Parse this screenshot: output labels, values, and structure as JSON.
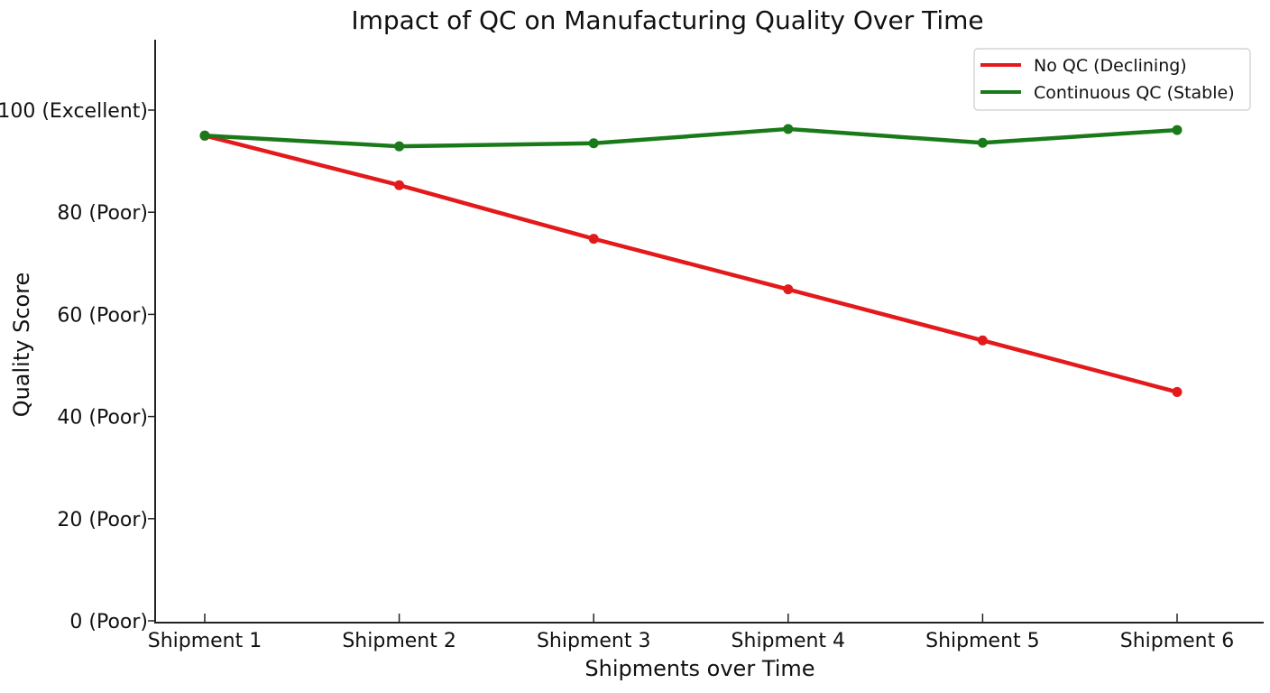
{
  "chart_data": {
    "type": "line",
    "title": "Impact of QC on Manufacturing Quality Over Time",
    "xlabel": "Shipments over Time",
    "ylabel": "Quality Score",
    "categories": [
      "Shipment 1",
      "Shipment 2",
      "Shipment 3",
      "Shipment 4",
      "Shipment 5",
      "Shipment 6"
    ],
    "yticks": [
      0,
      20,
      40,
      60,
      80,
      100
    ],
    "ytick_labels": [
      "0 (Poor)",
      "20 (Poor)",
      "40 (Poor)",
      "60 (Poor)",
      "80 (Poor)",
      "100 (Excellent)"
    ],
    "ylim": [
      0,
      114
    ],
    "grid": false,
    "legend_position": "top-right",
    "series": [
      {
        "name": "No QC (Declining)",
        "color": "#e31a1c",
        "values": [
          95,
          85.3,
          74.8,
          64.9,
          54.9,
          44.8
        ]
      },
      {
        "name": "Continuous QC (Stable)",
        "color": "#1a7a1a",
        "values": [
          95,
          92.9,
          93.5,
          96.3,
          93.6,
          96.1
        ]
      }
    ]
  }
}
